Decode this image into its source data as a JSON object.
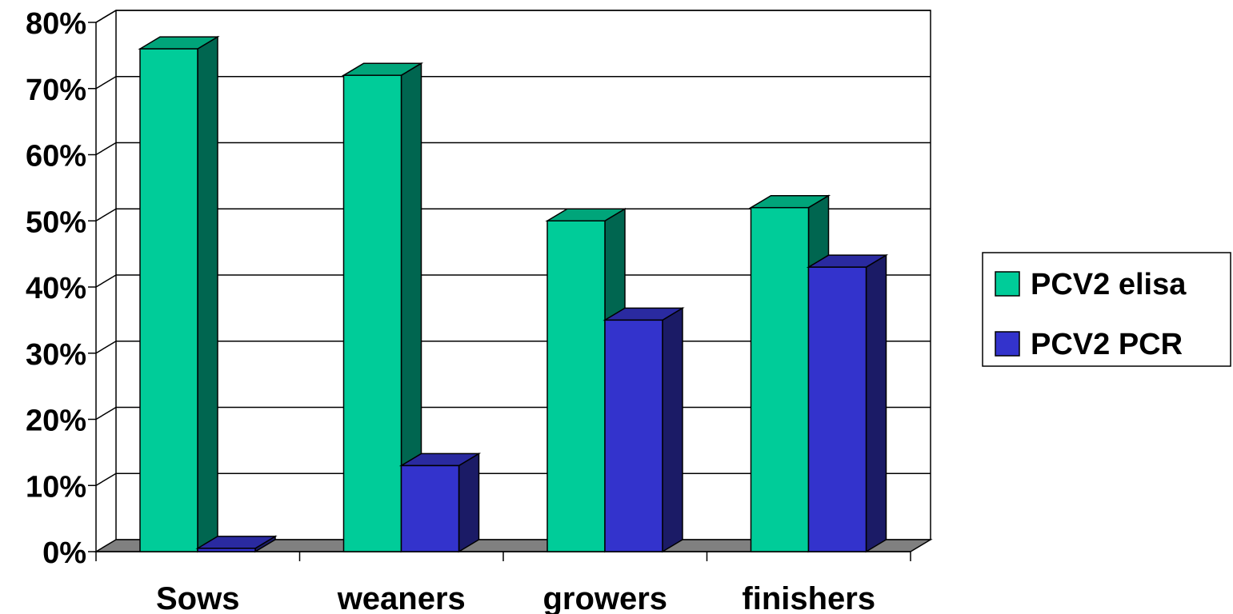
{
  "chart_data": {
    "type": "bar",
    "style": "3d-clustered",
    "categories": [
      "Sows",
      "weaners",
      "growers",
      "finishers"
    ],
    "series": [
      {
        "name": "PCV2 elisa",
        "values": [
          76,
          72,
          50,
          52
        ],
        "color": "#00CC99",
        "side_color": "#006650"
      },
      {
        "name": "PCV2 PCR",
        "values": [
          0.5,
          13,
          35,
          43
        ],
        "color": "#3333CC",
        "side_color": "#1B1B66"
      }
    ],
    "yticks": [
      "0%",
      "10%",
      "20%",
      "30%",
      "40%",
      "50%",
      "60%",
      "70%",
      "80%"
    ],
    "ylim": [
      0,
      80
    ],
    "title": "",
    "xlabel": "",
    "ylabel": "",
    "grid": true,
    "legend_position": "right",
    "floor_color": "#808080"
  }
}
